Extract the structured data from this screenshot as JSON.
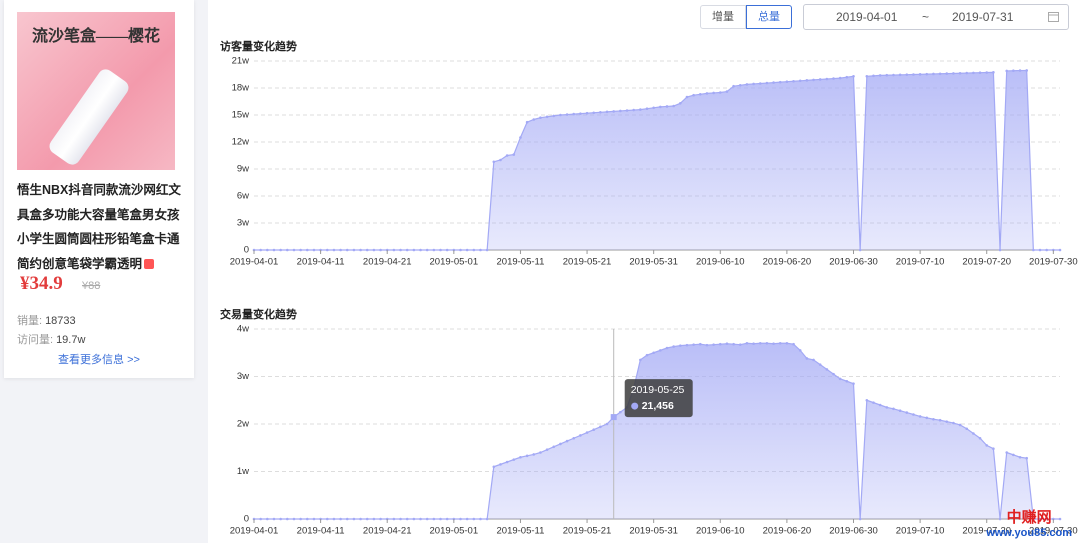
{
  "product": {
    "image_text": "流沙笔盒——樱花",
    "title": "悟生NBX抖音同款流沙网红文具盒多功能大容量笔盒男女孩小学生圆筒圆柱形铅笔盒卡通简约创意笔袋学霸透明",
    "price": "¥34.9",
    "original_price": "¥88",
    "sales_label": "销量:",
    "sales": "18733",
    "visits_label": "访问量:",
    "visits": "19.7w",
    "more": "查看更多信息 >>"
  },
  "controls": {
    "increment": "增量",
    "total": "总量",
    "start_date": "2019-04-01",
    "separator": "~",
    "end_date": "2019-07-31"
  },
  "watermark": {
    "name": "中赚网",
    "url": "www.you85.com"
  },
  "chart_data": [
    {
      "type": "area",
      "title": "访客量变化趋势",
      "color": "#a3a9f5",
      "categories": [
        "2019-04-01",
        null,
        null,
        null,
        null,
        null,
        null,
        null,
        null,
        null,
        "2019-04-11",
        null,
        null,
        null,
        null,
        null,
        null,
        null,
        null,
        null,
        "2019-04-21",
        null,
        null,
        null,
        null,
        null,
        null,
        null,
        null,
        null,
        "2019-05-01",
        null,
        null,
        null,
        null,
        null,
        null,
        null,
        null,
        null,
        "2019-05-11",
        null,
        null,
        null,
        null,
        null,
        null,
        null,
        null,
        null,
        "2019-05-21",
        null,
        null,
        null,
        null,
        null,
        null,
        null,
        null,
        null,
        "2019-05-31",
        null,
        null,
        null,
        null,
        null,
        null,
        null,
        null,
        null,
        "2019-06-10",
        null,
        null,
        null,
        null,
        null,
        null,
        null,
        null,
        null,
        "2019-06-20",
        null,
        null,
        null,
        null,
        null,
        null,
        null,
        null,
        null,
        "2019-06-30",
        null,
        null,
        null,
        null,
        null,
        null,
        null,
        null,
        null,
        "2019-07-10",
        null,
        null,
        null,
        null,
        null,
        null,
        null,
        null,
        null,
        "2019-07-20",
        null,
        null,
        null,
        null,
        null,
        null,
        null,
        null,
        null,
        "2019-07-30",
        null
      ],
      "values": [
        0,
        0,
        0,
        0,
        0,
        0,
        0,
        0,
        0,
        0,
        0,
        0,
        0,
        0,
        0,
        0,
        0,
        0,
        0,
        0,
        0,
        0,
        0,
        0,
        0,
        0,
        0,
        0,
        0,
        0,
        0,
        0,
        0,
        0,
        0,
        0,
        98000,
        100000,
        105000,
        106000,
        125000,
        142000,
        145000,
        147000,
        148000,
        149000,
        150000,
        150500,
        151000,
        151500,
        152000,
        152500,
        153000,
        153500,
        154000,
        154500,
        155000,
        155500,
        156000,
        157000,
        158000,
        159000,
        159500,
        160000,
        163000,
        170000,
        172000,
        173000,
        174000,
        174500,
        175000,
        176000,
        182000,
        183000,
        184000,
        184500,
        185000,
        185500,
        186000,
        186500,
        187000,
        187500,
        188000,
        188500,
        189000,
        189500,
        190000,
        190500,
        191000,
        192000,
        193000,
        0,
        193000,
        193500,
        194000,
        194200,
        194400,
        194600,
        194800,
        195000,
        195200,
        195400,
        195600,
        195800,
        196000,
        196200,
        196400,
        196600,
        196800,
        197000,
        197200,
        197400,
        0,
        199000,
        199200,
        199400,
        199500,
        0,
        0,
        0,
        0,
        0
      ],
      "ylim": [
        0,
        210000
      ],
      "yticks": [
        0,
        {
          "value": 30000,
          "label": "3w"
        },
        {
          "value": 60000,
          "label": "6w"
        },
        {
          "value": 90000,
          "label": "9w"
        },
        {
          "value": 120000,
          "label": "12w"
        },
        {
          "value": 150000,
          "label": "15w"
        },
        {
          "value": 180000,
          "label": "18w"
        },
        {
          "value": 210000,
          "label": "21w"
        }
      ],
      "grid": true
    },
    {
      "type": "area",
      "title": "交易量变化趋势",
      "color": "#a3a9f5",
      "categories": [
        "2019-04-01",
        null,
        null,
        null,
        null,
        null,
        null,
        null,
        null,
        null,
        "2019-04-11",
        null,
        null,
        null,
        null,
        null,
        null,
        null,
        null,
        null,
        "2019-04-21",
        null,
        null,
        null,
        null,
        null,
        null,
        null,
        null,
        null,
        "2019-05-01",
        null,
        null,
        null,
        null,
        null,
        null,
        null,
        null,
        null,
        "2019-05-11",
        null,
        null,
        null,
        null,
        null,
        null,
        null,
        null,
        null,
        "2019-05-21",
        null,
        null,
        null,
        null,
        null,
        null,
        null,
        null,
        null,
        "2019-05-31",
        null,
        null,
        null,
        null,
        null,
        null,
        null,
        null,
        null,
        "2019-06-10",
        null,
        null,
        null,
        null,
        null,
        null,
        null,
        null,
        null,
        "2019-06-20",
        null,
        null,
        null,
        null,
        null,
        null,
        null,
        null,
        null,
        "2019-06-30",
        null,
        null,
        null,
        null,
        null,
        null,
        null,
        null,
        null,
        "2019-07-10",
        null,
        null,
        null,
        null,
        null,
        null,
        null,
        null,
        null,
        "2019-07-20",
        null,
        null,
        null,
        null,
        null,
        null,
        null,
        null,
        null,
        "2019-07-30",
        null
      ],
      "values": [
        0,
        0,
        0,
        0,
        0,
        0,
        0,
        0,
        0,
        0,
        0,
        0,
        0,
        0,
        0,
        0,
        0,
        0,
        0,
        0,
        0,
        0,
        0,
        0,
        0,
        0,
        0,
        0,
        0,
        0,
        0,
        0,
        0,
        0,
        0,
        0,
        11000,
        11500,
        12000,
        12500,
        13000,
        13300,
        13600,
        14000,
        14600,
        15200,
        15800,
        16400,
        17000,
        17600,
        18200,
        18800,
        19400,
        20000,
        21456,
        22500,
        23500,
        27500,
        33500,
        34500,
        35000,
        35500,
        36000,
        36300,
        36500,
        36600,
        36700,
        36800,
        36600,
        36700,
        36800,
        36900,
        36800,
        36700,
        37000,
        36900,
        37000,
        37000,
        36900,
        37000,
        37000,
        36800,
        35500,
        33800,
        33500,
        32500,
        31500,
        30500,
        29500,
        29000,
        28500,
        0,
        25000,
        24500,
        24000,
        23500,
        23200,
        22800,
        22400,
        22000,
        21600,
        21300,
        21000,
        20800,
        20500,
        20200,
        19800,
        19000,
        18000,
        17000,
        15500,
        14800,
        0,
        14000,
        13500,
        13000,
        12800,
        0,
        0,
        0,
        0,
        0
      ],
      "ylim": [
        0,
        40000
      ],
      "yticks": [
        0,
        {
          "value": 10000,
          "label": "1w"
        },
        {
          "value": 20000,
          "label": "2w"
        },
        {
          "value": 30000,
          "label": "3w"
        },
        {
          "value": 40000,
          "label": "4w"
        }
      ],
      "grid": true,
      "tooltip": {
        "category": "2019-05-25",
        "value": 21456,
        "label": "21,456"
      }
    }
  ]
}
